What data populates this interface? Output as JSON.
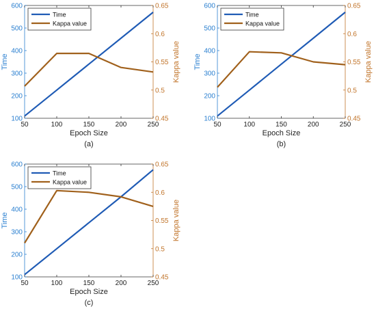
{
  "colors": {
    "time": "#1f5bb5",
    "kappa": "#a0601b",
    "axis_left": "#2a7fd0",
    "axis_right": "#c1742a",
    "axis_bottom": "#333333"
  },
  "chart_data": [
    {
      "type": "line",
      "panel_label": "(a)",
      "xlabel": "Epoch Size",
      "ylabel_left": "Time",
      "ylabel_right": "Kappa value",
      "x": [
        50,
        100,
        150,
        200,
        250
      ],
      "xticks": [
        50,
        100,
        150,
        200,
        250
      ],
      "xlim": [
        50,
        250
      ],
      "ylim_left": [
        100,
        600
      ],
      "yticks_left": [
        100,
        200,
        300,
        400,
        500,
        600
      ],
      "ylim_right": [
        0.45,
        0.65
      ],
      "yticks_right": [
        0.45,
        0.5,
        0.55,
        0.6,
        0.65
      ],
      "legend_position": "top-left",
      "series": [
        {
          "name": "Time",
          "axis": "left",
          "values": [
            110,
            225,
            340,
            455,
            570
          ]
        },
        {
          "name": "Kappa value",
          "axis": "right",
          "values": [
            0.507,
            0.565,
            0.565,
            0.54,
            0.532
          ]
        }
      ]
    },
    {
      "type": "line",
      "panel_label": "(b)",
      "xlabel": "Epoch Size",
      "ylabel_left": "Time",
      "ylabel_right": "Kappa value",
      "x": [
        50,
        100,
        150,
        200,
        250
      ],
      "xticks": [
        50,
        100,
        150,
        200,
        250
      ],
      "xlim": [
        50,
        250
      ],
      "ylim_left": [
        100,
        600
      ],
      "yticks_left": [
        100,
        200,
        300,
        400,
        500,
        600
      ],
      "ylim_right": [
        0.45,
        0.65
      ],
      "yticks_right": [
        0.45,
        0.5,
        0.55,
        0.6,
        0.65
      ],
      "legend_position": "top-left",
      "series": [
        {
          "name": "Time",
          "axis": "left",
          "values": [
            110,
            225,
            340,
            455,
            570
          ]
        },
        {
          "name": "Kappa value",
          "axis": "right",
          "values": [
            0.505,
            0.568,
            0.566,
            0.55,
            0.545
          ]
        }
      ]
    },
    {
      "type": "line",
      "panel_label": "(c)",
      "xlabel": "Epoch Size",
      "ylabel_left": "Time",
      "ylabel_right": "Kappa value",
      "x": [
        50,
        100,
        150,
        200,
        250
      ],
      "xticks": [
        50,
        100,
        150,
        200,
        250
      ],
      "xlim": [
        50,
        250
      ],
      "ylim_left": [
        100,
        600
      ],
      "yticks_left": [
        100,
        200,
        300,
        400,
        500,
        600
      ],
      "ylim_right": [
        0.45,
        0.65
      ],
      "yticks_right": [
        0.45,
        0.5,
        0.55,
        0.6,
        0.65
      ],
      "legend_position": "top-left",
      "series": [
        {
          "name": "Time",
          "axis": "left",
          "values": [
            110,
            225,
            340,
            455,
            575
          ]
        },
        {
          "name": "Kappa value",
          "axis": "right",
          "values": [
            0.51,
            0.603,
            0.6,
            0.592,
            0.575
          ]
        }
      ]
    }
  ]
}
